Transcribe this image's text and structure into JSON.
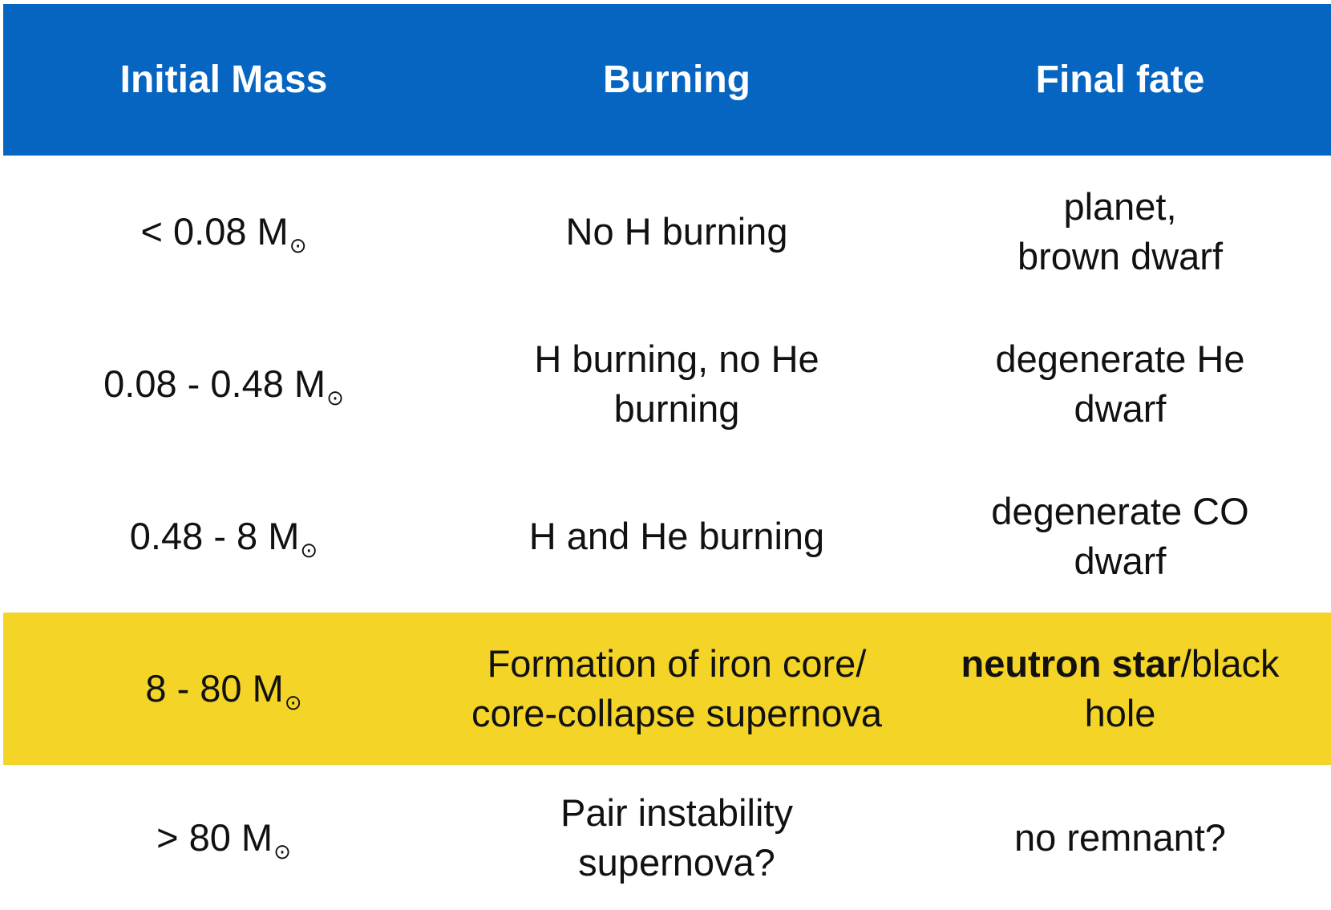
{
  "table": {
    "headers": [
      "Initial Mass",
      "Burning",
      "Final fate"
    ],
    "sun_symbol": "⊙",
    "rows": [
      {
        "mass": "< 0.08 M",
        "burning": [
          "No H burning"
        ],
        "fate": [
          "planet,",
          "brown dwarf"
        ]
      },
      {
        "mass": "0.08 - 0.48 M",
        "burning": [
          "H burning, no He",
          "burning"
        ],
        "fate": [
          "degenerate He",
          "dwarf"
        ]
      },
      {
        "mass": "0.48 - 8 M",
        "burning": [
          "H and He burning"
        ],
        "fate": [
          "degenerate CO",
          "dwarf"
        ]
      },
      {
        "mass": "8 - 80 M",
        "burning": [
          "Formation of iron core/",
          "core-collapse supernova"
        ],
        "fate_bold": "neutron star",
        "fate_rest": "/black",
        "fate_line2": "hole",
        "highlighted": true
      },
      {
        "mass": "> 80 M",
        "burning": [
          "Pair instability",
          "supernova?"
        ],
        "fate": [
          "no remnant?"
        ]
      }
    ]
  },
  "colors": {
    "header_bg": "#0565c1",
    "highlight_bg": "#f4d426",
    "header_text": "#ffffff",
    "body_text": "#111111"
  }
}
